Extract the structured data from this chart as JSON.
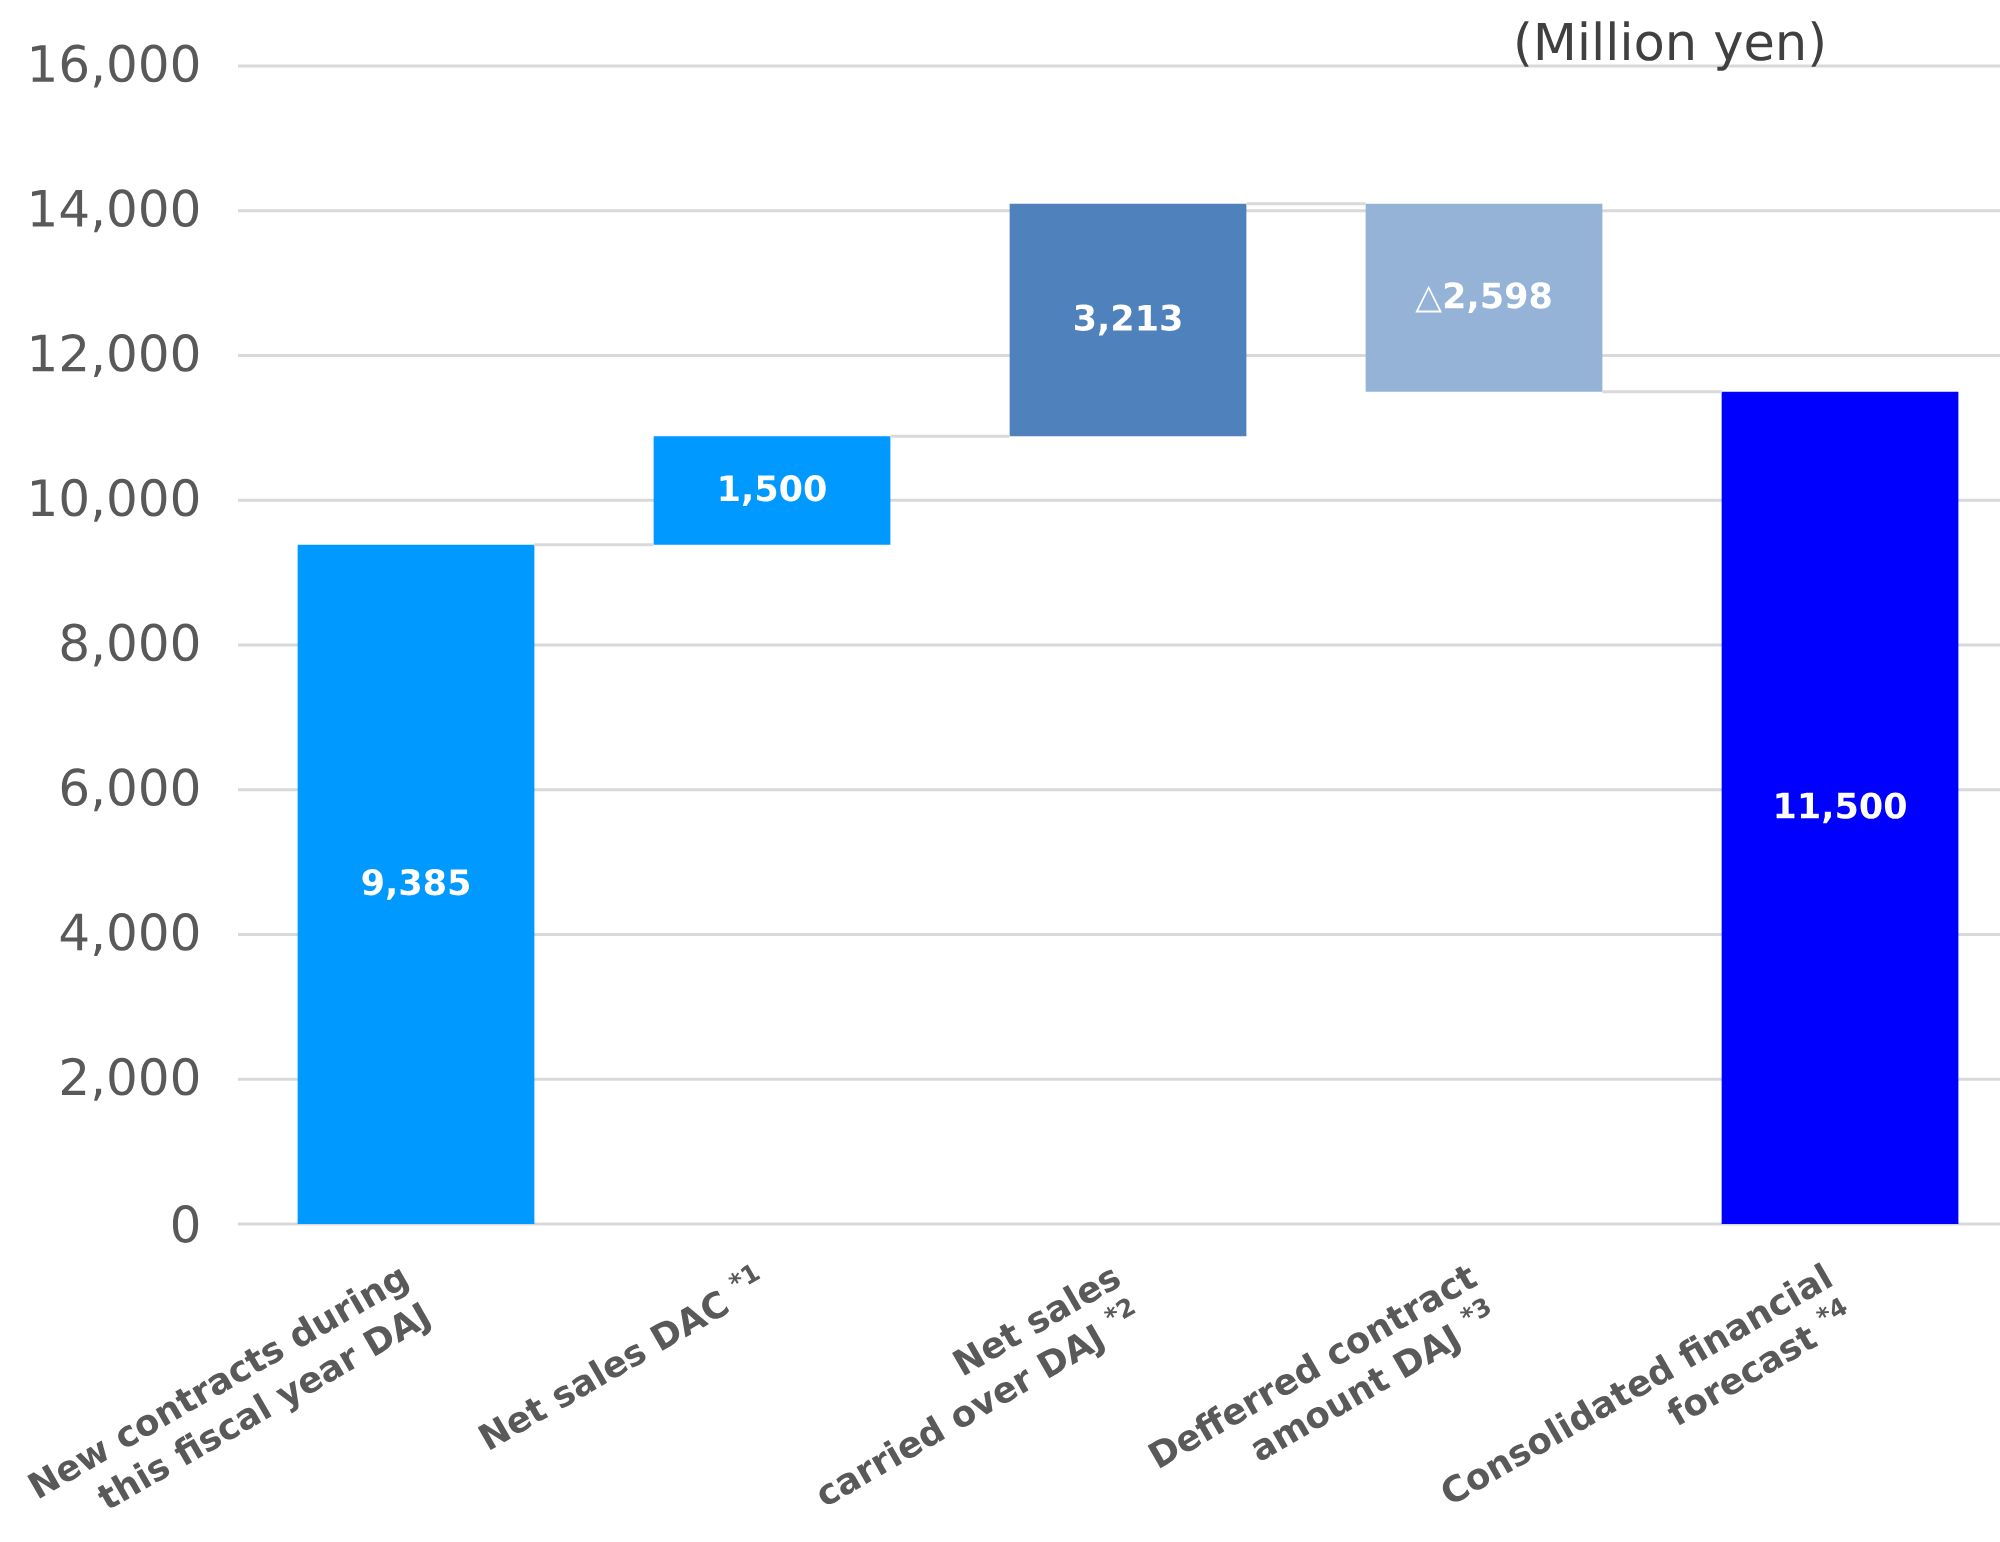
{
  "chart_data": {
    "type": "bar",
    "categories": [
      "New contracts during\nthis fiscal year DAJ",
      "Net sales DAC $^{*1}$",
      "Net sales\ncarried over DAJ $^{*2}$",
      "Defferred contract\namount DAJ $^{*3}$",
      "Consolidated financial\nforecast $^{*4}$"
    ],
    "values": [
      9385,
      1500,
      3213,
      -2598,
      11500
    ],
    "base": [
      0,
      9385,
      10885,
      14098,
      0
    ],
    "colors": [
      "#0099ff",
      "#0099ff",
      "#4f81bd",
      "#95b3d7",
      "#0000ff"
    ],
    "value_labels": [
      "9,385",
      "1,500",
      "3,213",
      "△2,598",
      "11,500"
    ],
    "ylim": [
      0,
      16000
    ],
    "yticks": [
      0,
      {
        "value": 2000,
        "label": "2,000"
      },
      {
        "value": 4000,
        "label": "4,000"
      },
      {
        "value": 6000,
        "label": "6,000"
      },
      {
        "value": 8000,
        "label": "8,000"
      },
      {
        "value": 10000,
        "label": "10,000"
      },
      {
        "value": 12000,
        "label": "12,000"
      },
      {
        "value": 14000,
        "label": "14,000"
      },
      {
        "value": 16000,
        "label": "16,000"
      }
    ],
    "grid": "y",
    "annotations": [
      "(Million yen)"
    ]
  }
}
